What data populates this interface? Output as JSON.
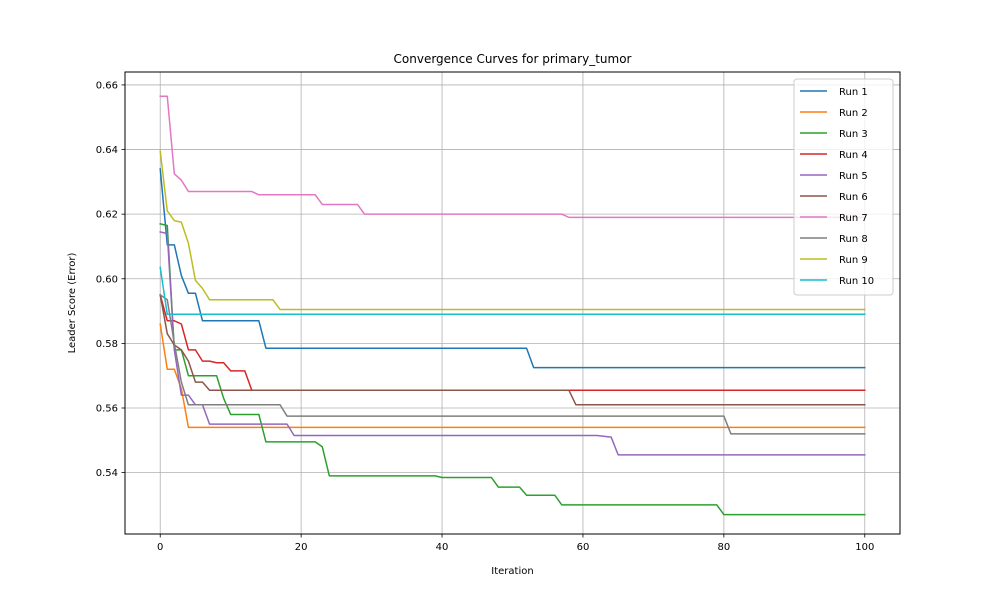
{
  "chart_data": {
    "type": "line",
    "title": "Convergence Curves for primary_tumor",
    "xlabel": "Iteration",
    "ylabel": "Leader Score (Error)",
    "xlim": [
      -5,
      105
    ],
    "ylim": [
      0.521,
      0.664
    ],
    "xticks": [
      0,
      20,
      40,
      60,
      80,
      100
    ],
    "yticks": [
      0.54,
      0.56,
      0.58,
      0.6,
      0.62,
      0.64,
      0.66
    ],
    "xtick_labels": [
      "0",
      "20",
      "40",
      "60",
      "80",
      "100"
    ],
    "ytick_labels": [
      "0.54",
      "0.56",
      "0.58",
      "0.60",
      "0.62",
      "0.64",
      "0.66"
    ],
    "grid": true,
    "legend_position": "upper right",
    "series": [
      {
        "name": "Run 1",
        "color": "#1f77b4",
        "x": [
          0,
          1,
          2,
          3,
          4,
          5,
          6,
          14,
          15,
          52,
          53,
          100
        ],
        "y": [
          0.634,
          0.6105,
          0.6105,
          0.601,
          0.5955,
          0.5955,
          0.587,
          0.587,
          0.5785,
          0.5785,
          0.5725,
          0.5725
        ]
      },
      {
        "name": "Run 2",
        "color": "#ff7f0e",
        "x": [
          0,
          1,
          2,
          3,
          4,
          100
        ],
        "y": [
          0.586,
          0.572,
          0.572,
          0.566,
          0.554,
          0.554
        ]
      },
      {
        "name": "Run 3",
        "color": "#2ca02c",
        "x": [
          0,
          1,
          2,
          3,
          4,
          5,
          8,
          9,
          10,
          14,
          15,
          22,
          23,
          24,
          39,
          40,
          43,
          44,
          47,
          48,
          51,
          52,
          56,
          57,
          79,
          80,
          100
        ],
        "y": [
          0.617,
          0.6165,
          0.578,
          0.578,
          0.57,
          0.57,
          0.57,
          0.563,
          0.558,
          0.558,
          0.5495,
          0.5495,
          0.548,
          0.539,
          0.539,
          0.5385,
          0.5385,
          0.5385,
          0.5385,
          0.5355,
          0.5355,
          0.533,
          0.533,
          0.53,
          0.53,
          0.527,
          0.527
        ]
      },
      {
        "name": "Run 4",
        "color": "#d62728",
        "x": [
          0,
          1,
          2,
          3,
          4,
          5,
          6,
          7,
          8,
          9,
          10,
          12,
          13,
          100
        ],
        "y": [
          0.595,
          0.587,
          0.587,
          0.586,
          0.578,
          0.578,
          0.5745,
          0.5745,
          0.574,
          0.574,
          0.5715,
          0.5715,
          0.5655,
          0.5655
        ]
      },
      {
        "name": "Run 5",
        "color": "#9467bd",
        "x": [
          0,
          1,
          2,
          3,
          4,
          5,
          6,
          7,
          18,
          19,
          62,
          64,
          65,
          100
        ],
        "y": [
          0.6145,
          0.614,
          0.578,
          0.564,
          0.564,
          0.561,
          0.561,
          0.555,
          0.555,
          0.5515,
          0.5515,
          0.551,
          0.5455,
          0.5455
        ]
      },
      {
        "name": "Run 6",
        "color": "#8c564b",
        "x": [
          0,
          1,
          2,
          3,
          4,
          5,
          6,
          7,
          58,
          59,
          100
        ],
        "y": [
          0.595,
          0.583,
          0.5795,
          0.578,
          0.5745,
          0.568,
          0.568,
          0.5655,
          0.5655,
          0.561,
          0.561
        ]
      },
      {
        "name": "Run 7",
        "color": "#e377c2",
        "x": [
          0,
          1,
          2,
          3,
          4,
          11,
          13,
          14,
          22,
          23,
          28,
          29,
          57,
          58,
          100
        ],
        "y": [
          0.6565,
          0.6565,
          0.6325,
          0.6305,
          0.627,
          0.627,
          0.627,
          0.626,
          0.626,
          0.623,
          0.623,
          0.62,
          0.62,
          0.619,
          0.619
        ]
      },
      {
        "name": "Run 8",
        "color": "#7f7f7f",
        "x": [
          0,
          1,
          2,
          3,
          4,
          17,
          18,
          80,
          81,
          100
        ],
        "y": [
          0.595,
          0.5935,
          0.58,
          0.568,
          0.561,
          0.561,
          0.5575,
          0.5575,
          0.552,
          0.552
        ]
      },
      {
        "name": "Run 9",
        "color": "#bcbd22",
        "x": [
          0,
          1,
          2,
          3,
          4,
          5,
          6,
          7,
          16,
          17,
          100
        ],
        "y": [
          0.6395,
          0.621,
          0.618,
          0.6175,
          0.611,
          0.5995,
          0.597,
          0.5935,
          0.5935,
          0.5905,
          0.5905
        ]
      },
      {
        "name": "Run 10",
        "color": "#17becf",
        "x": [
          0,
          1,
          100
        ],
        "y": [
          0.6035,
          0.589,
          0.589
        ]
      }
    ]
  }
}
